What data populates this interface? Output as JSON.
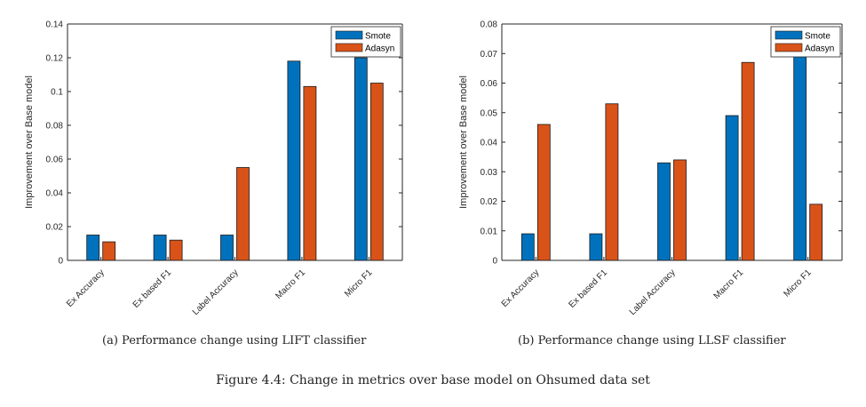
{
  "colors": {
    "Smote": "#0072BD",
    "Adasyn": "#D95319"
  },
  "figure_caption": "Figure 4.4: Change in metrics over base model on Ohsumed data set",
  "chart_data": [
    {
      "type": "bar",
      "caption": "(a) Performance change using LIFT classifier",
      "categories": [
        "Ex Accuracy",
        "Ex based F1",
        "Label Accuracy",
        "Macro F1",
        "Micro F1"
      ],
      "series": [
        {
          "name": "Smote",
          "values": [
            0.015,
            0.015,
            0.015,
            0.118,
            0.12
          ]
        },
        {
          "name": "Adasyn",
          "values": [
            0.011,
            0.012,
            0.055,
            0.103,
            0.105
          ]
        }
      ],
      "ylabel": "Improvement over Base model",
      "xlabel": "",
      "ylim": [
        0,
        0.14
      ],
      "yticks": [
        "0",
        "0.02",
        "0.04",
        "0.06",
        "0.08",
        "0.1",
        "0.12",
        "0.14"
      ],
      "legend": "top-right",
      "grid": false
    },
    {
      "type": "bar",
      "caption": "(b) Performance change using LLSF classifier",
      "categories": [
        "Ex Accuracy",
        "Ex based F1",
        "Label Accuracy",
        "Macro F1",
        "Micro F1"
      ],
      "series": [
        {
          "name": "Smote",
          "values": [
            0.009,
            0.009,
            0.033,
            0.049,
            0.07
          ]
        },
        {
          "name": "Adasyn",
          "values": [
            0.046,
            0.053,
            0.034,
            0.067,
            0.019
          ]
        }
      ],
      "ylabel": "Improvement over Base model",
      "xlabel": "",
      "ylim": [
        0,
        0.08
      ],
      "yticks": [
        "0",
        "0.01",
        "0.02",
        "0.03",
        "0.04",
        "0.05",
        "0.06",
        "0.07",
        "0.08"
      ],
      "legend": "top-right",
      "grid": false
    }
  ]
}
